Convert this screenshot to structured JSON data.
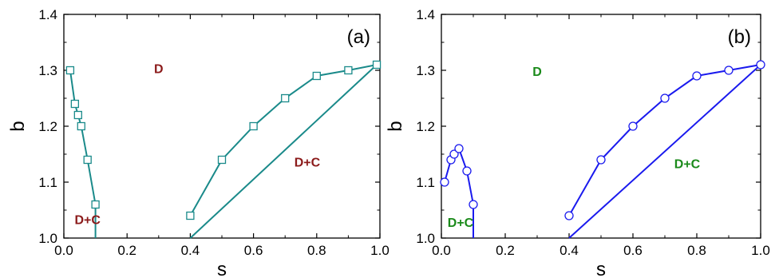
{
  "chart_data": [
    {
      "type": "line",
      "panel_label": "(a)",
      "xlabel": "s",
      "ylabel": "b",
      "xlim": [
        0.0,
        1.0
      ],
      "ylim": [
        1.0,
        1.4
      ],
      "xticks": [
        "0.0",
        "0.2",
        "0.4",
        "0.6",
        "0.8",
        "1.0"
      ],
      "yticks": [
        "1.0",
        "1.1",
        "1.2",
        "1.3",
        "1.4"
      ],
      "line_color": "#1a8a8a",
      "marker": "square",
      "region_label_color": "#8b1a1a",
      "series": [
        {
          "points": [
            [
              0.02,
              1.3
            ],
            [
              0.035,
              1.24
            ],
            [
              0.045,
              1.22
            ],
            [
              0.055,
              1.2
            ],
            [
              0.075,
              1.14
            ],
            [
              0.1,
              1.06
            ]
          ],
          "tail": [
            0.1,
            1.0
          ]
        },
        {
          "points": [
            [
              0.4,
              1.04
            ],
            [
              0.5,
              1.14
            ],
            [
              0.6,
              1.2
            ],
            [
              0.7,
              1.25
            ],
            [
              0.8,
              1.29
            ],
            [
              0.9,
              1.3
            ],
            [
              0.99,
              1.31
            ]
          ],
          "tail": [
            0.4,
            1.0
          ]
        }
      ],
      "annotations": [
        {
          "text": "D",
          "x": 0.3,
          "y": 1.295
        },
        {
          "text": "D+C",
          "x": 0.77,
          "y": 1.128
        },
        {
          "text": "D+C",
          "x": 0.075,
          "y": 1.025
        }
      ]
    },
    {
      "type": "line",
      "panel_label": "(b)",
      "xlabel": "s",
      "ylabel": "b",
      "xlim": [
        0.0,
        1.0
      ],
      "ylim": [
        1.0,
        1.4
      ],
      "xticks": [
        "0.0",
        "0.2",
        "0.4",
        "0.6",
        "0.8",
        "1.0"
      ],
      "yticks": [
        "1.0",
        "1.1",
        "1.2",
        "1.3",
        "1.4"
      ],
      "line_color": "#1a1aee",
      "marker": "circle",
      "region_label_color": "#1a8a1a",
      "series": [
        {
          "points": [
            [
              0.01,
              1.1
            ],
            [
              0.03,
              1.14
            ],
            [
              0.04,
              1.15
            ],
            [
              0.055,
              1.16
            ],
            [
              0.08,
              1.12
            ],
            [
              0.1,
              1.06
            ]
          ],
          "tail": [
            0.1,
            1.0
          ]
        },
        {
          "points": [
            [
              0.4,
              1.04
            ],
            [
              0.5,
              1.14
            ],
            [
              0.6,
              1.2
            ],
            [
              0.7,
              1.25
            ],
            [
              0.8,
              1.29
            ],
            [
              0.9,
              1.3
            ],
            [
              1.0,
              1.31
            ]
          ],
          "tail": [
            0.4,
            1.0
          ]
        }
      ],
      "annotations": [
        {
          "text": "D",
          "x": 0.3,
          "y": 1.29
        },
        {
          "text": "D+C",
          "x": 0.77,
          "y": 1.125
        },
        {
          "text": "D+C",
          "x": 0.06,
          "y": 1.02
        }
      ]
    }
  ]
}
